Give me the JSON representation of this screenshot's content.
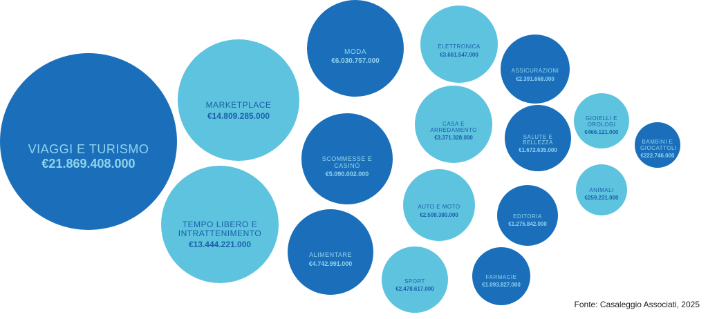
{
  "chart_data": {
    "type": "bubble",
    "categories": [
      "VIAGGI E TURISMO",
      "MARKETPLACE",
      "TEMPO LIBERO E INTRATTENIMENTO",
      "MODA",
      "SCOMMESSE E CASINÒ",
      "ALIMENTARE",
      "ELETTRONICA",
      "CASA E ARREDAMENTO",
      "AUTO E MOTO",
      "SPORT",
      "ASSICURAZIONI",
      "SALUTE E BELLEZZA",
      "EDITORIA",
      "FARMACIE",
      "GIOIELLI E OROLOGI",
      "ANIMALI",
      "BAMBINI E GIOCATTOLI"
    ],
    "values": [
      21869408000,
      14809285000,
      13444221000,
      6030757000,
      5090002000,
      4742991000,
      3661547000,
      3371328000,
      2508380000,
      2478617000,
      2391668000,
      1672635000,
      1275842000,
      1093827000,
      466121000,
      259231000,
      222746000
    ],
    "value_labels": [
      "€21.869.408.000",
      "€14.809.285.000",
      "€13.444.221.000",
      "€6.030.757.000",
      "€5.090.002.000",
      "€4.742.991.000",
      "€3.661.547.000",
      "€3.371.328.000",
      "€2.508.380.000",
      "€2.478.617.000",
      "€2.391.668.000",
      "€1.672.635.000",
      "€1.275.842.000",
      "€1.093.827.000",
      "€466.121.000",
      "€259.231.000",
      "€222.746.000"
    ],
    "colors": [
      "#1b6fba",
      "#5ec3df",
      "#5ec3df",
      "#1b6fba",
      "#1b6fba",
      "#1b6fba",
      "#5ec3df",
      "#5ec3df",
      "#5ec3df",
      "#5ec3df",
      "#1b6fba",
      "#1b6fba",
      "#1b6fba",
      "#1b6fba",
      "#5ec3df",
      "#5ec3df",
      "#1b6fba"
    ],
    "source": "Fonte: Casaleggio Associati, 2025"
  }
}
